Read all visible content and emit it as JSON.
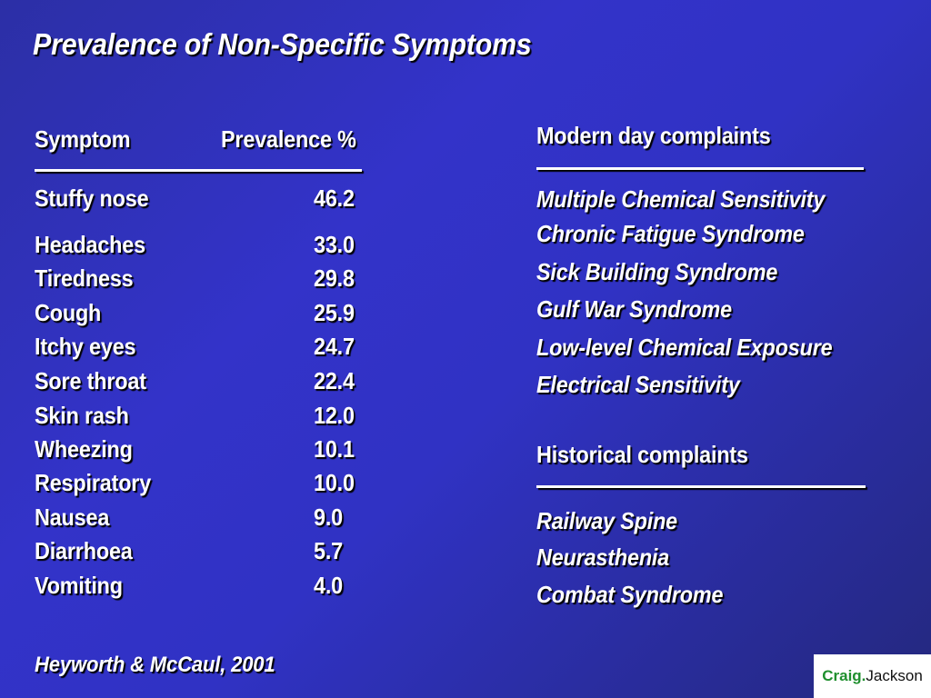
{
  "slide": {
    "title": "Prevalence of Non-Specific Symptoms",
    "table": {
      "header_symptom": "Symptom",
      "header_prevalence": "Prevalence %",
      "rows": [
        {
          "symptom": "Stuffy nose",
          "value": "46.2"
        },
        {
          "symptom": "Headaches",
          "value": "33.0"
        },
        {
          "symptom": "Tiredness",
          "value": "29.8"
        },
        {
          "symptom": "Cough",
          "value": "25.9"
        },
        {
          "symptom": "Itchy eyes",
          "value": "24.7"
        },
        {
          "symptom": "Sore throat",
          "value": "22.4"
        },
        {
          "symptom": "Skin rash",
          "value": "12.0"
        },
        {
          "symptom": "Wheezing",
          "value": "10.1"
        },
        {
          "symptom": "Respiratory",
          "value": "10.0"
        },
        {
          "symptom": "Nausea",
          "value": "9.0"
        },
        {
          "symptom": "Diarrhoea",
          "value": "5.7"
        },
        {
          "symptom": "Vomiting",
          "value": "4.0"
        }
      ]
    },
    "modern": {
      "heading": "Modern day complaints",
      "items": [
        "Multiple Chemical Sensitivity",
        "Chronic Fatigue Syndrome",
        "Sick Building Syndrome",
        "Gulf War Syndrome",
        "Low-level Chemical Exposure",
        "Electrical Sensitivity"
      ]
    },
    "historical": {
      "heading": "Historical complaints",
      "items": [
        "Railway Spine",
        "Neurasthenia",
        "Combat Syndrome"
      ]
    },
    "citation": "Heyworth & McCaul, 2001",
    "logo": {
      "part1": "Craig.",
      "part2": "Jackson"
    },
    "colors": {
      "background_top_left": "#2c2fa6",
      "background_center": "#3333c9",
      "background_bottom_right": "#24287e",
      "text": "#ffffff",
      "logo_green": "#1f8f2e"
    }
  }
}
